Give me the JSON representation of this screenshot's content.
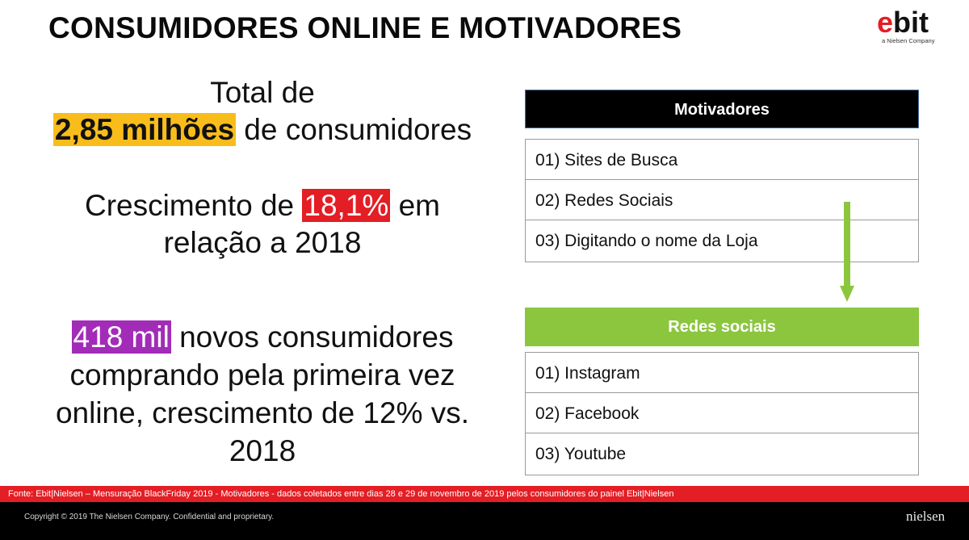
{
  "title": "CONSUMIDORES ONLINE E MOTIVADORES",
  "logo": {
    "mark_e": "e",
    "mark_rest": "bit",
    "subtitle": "a Nielsen Company"
  },
  "left": {
    "block1": {
      "line1": "Total de",
      "highlight": "2,85 milhões",
      "rest": " de consumidores"
    },
    "block2": {
      "pre": "Crescimento de ",
      "highlight": "18,1%",
      "post": " em",
      "line2": "relação a 2018"
    },
    "block3": {
      "highlight": "418 mil",
      "rest": " novos consumidores",
      "line2": "comprando pela primeira vez",
      "line3": "online, crescimento de 12% vs.",
      "line4": "2018"
    }
  },
  "motivadores": {
    "header": "Motivadores",
    "items": [
      "01) Sites de Busca",
      "02) Redes Sociais",
      "03) Digitando o nome da Loja"
    ]
  },
  "redes_sociais": {
    "header": "Redes sociais",
    "items": [
      "01) Instagram",
      "02) Facebook",
      "03) Youtube"
    ]
  },
  "source": "Fonte: Ebit|Nielsen – Mensuração BlackFriday 2019 - Motivadores - dados coletados entre dias 28 e 29 de novembro de 2019 pelos consumidores do painel Ebit|Nielsen",
  "footer": {
    "copyright": "Copyright © 2019 The Nielsen Company. Confidential and proprietary.",
    "brand": "nielsen"
  },
  "colors": {
    "yellow": "#f9bd1b",
    "red": "#e31e24",
    "purple": "#a22cb8",
    "green": "#8cc63f",
    "black": "#000000"
  },
  "icons": {
    "arrow": "arrow-down-icon"
  }
}
